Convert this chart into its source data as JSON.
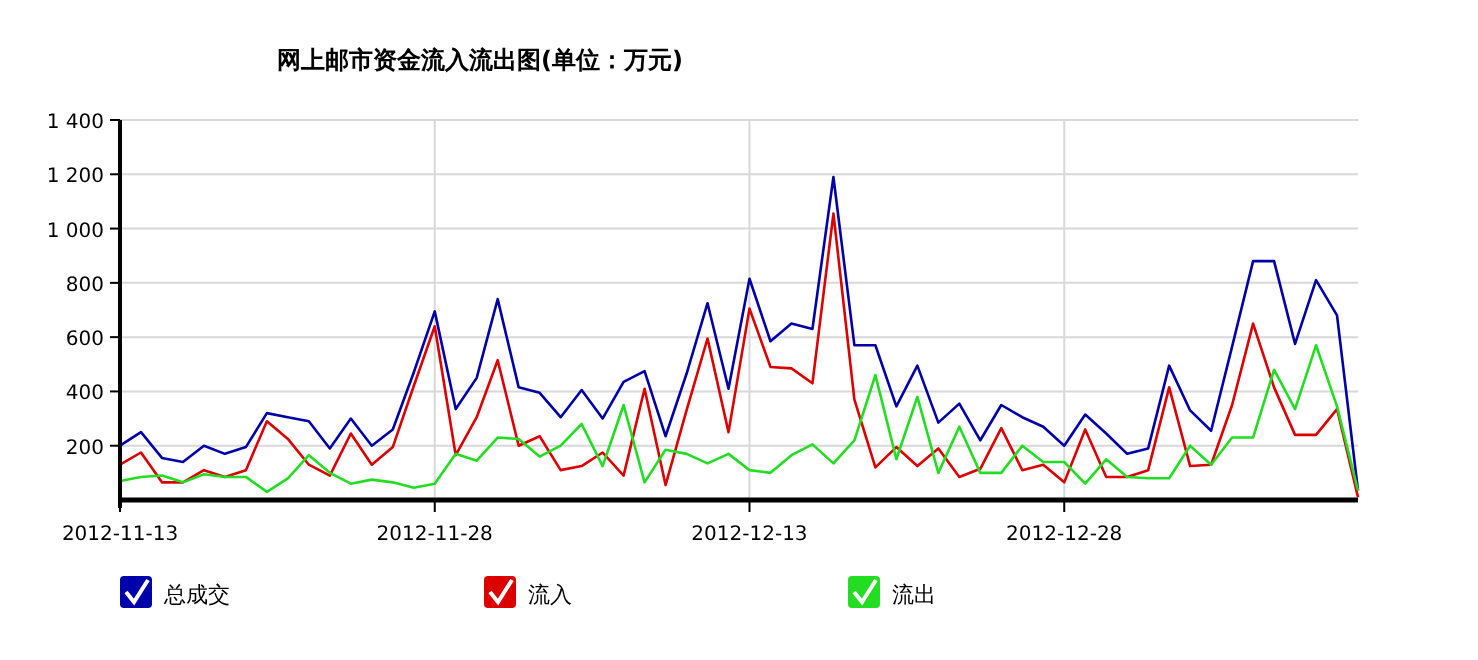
{
  "chart_data": {
    "type": "line",
    "title": "网上邮市资金流入流出图(单位：万元)",
    "x": [
      "2012-11-13",
      "2012-11-14",
      "2012-11-15",
      "2012-11-16",
      "2012-11-17",
      "2012-11-18",
      "2012-11-19",
      "2012-11-20",
      "2012-11-21",
      "2012-11-22",
      "2012-11-23",
      "2012-11-24",
      "2012-11-25",
      "2012-11-26",
      "2012-11-27",
      "2012-11-28",
      "2012-11-29",
      "2012-11-30",
      "2012-12-01",
      "2012-12-02",
      "2012-12-03",
      "2012-12-04",
      "2012-12-05",
      "2012-12-06",
      "2012-12-07",
      "2012-12-08",
      "2012-12-09",
      "2012-12-10",
      "2012-12-11",
      "2012-12-12",
      "2012-12-13",
      "2012-12-14",
      "2012-12-15",
      "2012-12-16",
      "2012-12-17",
      "2012-12-18",
      "2012-12-19",
      "2012-12-20",
      "2012-12-21",
      "2012-12-22",
      "2012-12-23",
      "2012-12-24",
      "2012-12-25",
      "2012-12-26",
      "2012-12-27",
      "2012-12-28",
      "2012-12-29",
      "2012-12-30",
      "2012-12-31",
      "2013-01-01",
      "2013-01-02",
      "2013-01-03",
      "2013-01-04",
      "2013-01-05",
      "2013-01-06",
      "2013-01-07",
      "2013-01-08",
      "2013-01-09",
      "2013-01-10",
      "2013-01-11"
    ],
    "series": [
      {
        "name": "总成交",
        "color": "#0000aa",
        "values": [
          200,
          250,
          155,
          140,
          200,
          170,
          195,
          320,
          305,
          290,
          190,
          300,
          200,
          260,
          470,
          695,
          335,
          450,
          740,
          415,
          395,
          305,
          405,
          300,
          435,
          475,
          235,
          465,
          725,
          410,
          815,
          585,
          650,
          630,
          1190,
          570,
          570,
          345,
          495,
          285,
          355,
          220,
          350,
          305,
          270,
          200,
          315,
          245,
          170,
          190,
          495,
          330,
          255,
          565,
          880,
          880,
          575,
          810,
          680,
          35
        ]
      },
      {
        "name": "流入",
        "color": "#dd0000",
        "values": [
          130,
          175,
          65,
          65,
          110,
          85,
          110,
          290,
          225,
          130,
          90,
          245,
          130,
          195,
          420,
          640,
          165,
          305,
          515,
          200,
          235,
          110,
          125,
          175,
          90,
          410,
          55,
          330,
          595,
          250,
          705,
          490,
          485,
          430,
          1055,
          370,
          120,
          195,
          125,
          190,
          85,
          115,
          265,
          110,
          130,
          65,
          260,
          85,
          85,
          110,
          415,
          125,
          130,
          350,
          650,
          415,
          240,
          240,
          335,
          10
        ]
      },
      {
        "name": "流出",
        "color": "#22dd22",
        "values": [
          70,
          85,
          90,
          65,
          95,
          85,
          85,
          30,
          80,
          165,
          100,
          60,
          75,
          65,
          45,
          60,
          170,
          145,
          230,
          225,
          160,
          200,
          280,
          125,
          350,
          65,
          185,
          170,
          135,
          170,
          110,
          100,
          165,
          205,
          135,
          220,
          460,
          150,
          380,
          100,
          270,
          100,
          100,
          200,
          140,
          140,
          60,
          150,
          85,
          80,
          80,
          200,
          130,
          230,
          230,
          480,
          335,
          570,
          345,
          35
        ]
      }
    ],
    "xlim": [
      "2012-11-13",
      "2013-01-11"
    ],
    "xticks": [
      {
        "value": "2012-11-13",
        "label": "2012-11-13"
      },
      {
        "value": "2012-11-28",
        "label": "2012-11-28"
      },
      {
        "value": "2012-12-13",
        "label": "2012-12-13"
      },
      {
        "value": "2012-12-28",
        "label": "2012-12-28"
      }
    ],
    "ylim": [
      0,
      1400
    ],
    "yticks": [
      200,
      400,
      600,
      800,
      {
        "value": 1000,
        "label": "1 000"
      },
      {
        "value": 1200,
        "label": "1 200"
      },
      {
        "value": 1400,
        "label": "1 400"
      }
    ],
    "grid": true,
    "legend": "bottom",
    "marker": "none",
    "line_style": "solid"
  }
}
